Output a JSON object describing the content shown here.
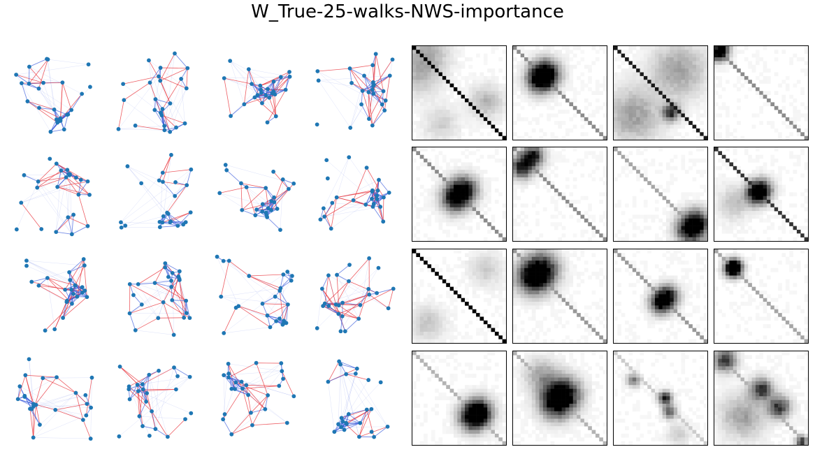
{
  "figure": {
    "title": "W_True-25-walks-NWS-importance"
  },
  "chart_data": {
    "type": "heatmap",
    "title": "W_True-25-walks-NWS-importance",
    "layout": {
      "rows": 4,
      "graph_panels_per_row": 4,
      "matrix_panels_per_row": 4
    },
    "graph_panels": {
      "description_type": "network",
      "node_count": 25,
      "node_color": "#1f77b4",
      "edge_colors": {
        "negative": "#e8343c",
        "positive": "#3b5bdb"
      },
      "count": 16
    },
    "matrix_panels": {
      "size": 25,
      "colormap": "greys",
      "count": 16,
      "panels": [
        {
          "diag": 1.0,
          "blobs": [
            [
              0.15,
              0.05,
              4,
              0.3
            ],
            [
              0.05,
              0.3,
              4,
              0.25
            ],
            [
              0.8,
              0.6,
              3,
              0.3
            ],
            [
              0.3,
              0.85,
              3,
              0.2
            ]
          ]
        },
        {
          "diag": 0.45,
          "blobs": [
            [
              0.35,
              0.28,
              2.5,
              1.0
            ],
            [
              0.28,
              0.35,
              2.5,
              1.0
            ]
          ]
        },
        {
          "diag": 0.9,
          "blobs": [
            [
              0.7,
              0.25,
              5,
              0.4
            ],
            [
              0.2,
              0.75,
              5,
              0.4
            ],
            [
              0.62,
              0.72,
              1.5,
              0.9
            ]
          ]
        },
        {
          "diag": 0.45,
          "blobs": [
            [
              0.06,
              0.02,
              1.5,
              0.9
            ],
            [
              0.02,
              0.06,
              1.5,
              0.9
            ]
          ]
        },
        {
          "diag": 0.45,
          "blobs": [
            [
              0.55,
              0.45,
              2.5,
              1.0
            ],
            [
              0.45,
              0.55,
              2.5,
              1.0
            ]
          ]
        },
        {
          "diag": 0.45,
          "blobs": [
            [
              0.2,
              0.08,
              2,
              1.0
            ],
            [
              0.08,
              0.2,
              2,
              1.0
            ]
          ]
        },
        {
          "diag": 0.35,
          "blobs": [
            [
              0.82,
              0.9,
              2.5,
              0.9
            ],
            [
              0.9,
              0.82,
              2.5,
              0.9
            ]
          ]
        },
        {
          "diag": 0.8,
          "blobs": [
            [
              0.45,
              0.5,
              2,
              0.9
            ],
            [
              0.5,
              0.45,
              2,
              0.9
            ],
            [
              0.2,
              0.6,
              3,
              0.25
            ]
          ]
        },
        {
          "diag": 1.0,
          "blobs": [
            [
              0.8,
              0.2,
              3,
              0.2
            ],
            [
              0.15,
              0.8,
              3,
              0.25
            ]
          ]
        },
        {
          "diag": 0.4,
          "blobs": [
            [
              0.2,
              0.3,
              3,
              1.0
            ],
            [
              0.3,
              0.2,
              3,
              1.0
            ]
          ]
        },
        {
          "diag": 0.4,
          "blobs": [
            [
              0.5,
              0.58,
              2,
              1.0
            ],
            [
              0.58,
              0.5,
              2,
              1.0
            ]
          ]
        },
        {
          "diag": 0.35,
          "blobs": [
            [
              0.2,
              0.18,
              1.5,
              1.0
            ],
            [
              0.18,
              0.2,
              1.5,
              1.0
            ]
          ]
        },
        {
          "diag": 0.3,
          "blobs": [
            [
              0.65,
              0.72,
              2.5,
              1.0
            ],
            [
              0.72,
              0.65,
              2.5,
              1.0
            ]
          ]
        },
        {
          "diag": 0.3,
          "blobs": [
            [
              0.45,
              0.55,
              3,
              1.0
            ],
            [
              0.55,
              0.45,
              3,
              1.0
            ],
            [
              0.3,
              0.25,
              3,
              0.4
            ]
          ]
        },
        {
          "diag": 0.2,
          "blobs": [
            [
              0.55,
              0.5,
              1.2,
              1.0
            ],
            [
              0.6,
              0.65,
              1.2,
              0.8
            ],
            [
              0.2,
              0.3,
              1.2,
              0.6
            ],
            [
              0.7,
              0.9,
              2,
              0.2
            ]
          ]
        },
        {
          "diag": 0.3,
          "blobs": [
            [
              0.1,
              0.08,
              2,
              0.9
            ],
            [
              0.5,
              0.4,
              2,
              0.9
            ],
            [
              0.7,
              0.6,
              2,
              0.9
            ],
            [
              0.3,
              0.7,
              4,
              0.4
            ],
            [
              0.95,
              0.98,
              1,
              0.9
            ]
          ]
        }
      ]
    }
  }
}
